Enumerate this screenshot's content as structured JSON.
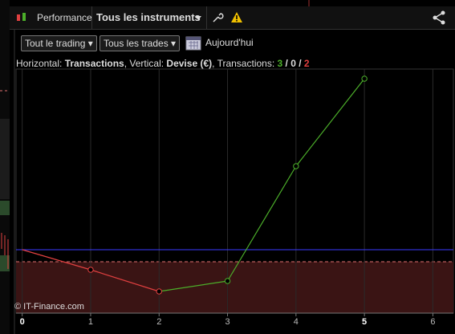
{
  "toolbar": {
    "tab": "Performance",
    "instrument": "Tous les instruments"
  },
  "filters": {
    "trading": "Tout le trading",
    "trades": "Tous les trades",
    "date": "Aujourd'hui"
  },
  "info": {
    "h_label": "Horizontal: ",
    "h_value": "Transactions",
    "v_label": ", Vertical: ",
    "v_value": "Devise (€)",
    "t_label": ", Transactions: ",
    "won": 3,
    "separator": " / ",
    "neutral": 0,
    "lost": 2
  },
  "chart_data": {
    "type": "line",
    "x": [
      0,
      1,
      2,
      3,
      4,
      5
    ],
    "values": [
      0,
      -25,
      -52,
      -39,
      104,
      213
    ],
    "xlim": [
      -0.09,
      6.3
    ],
    "ylim": [
      -79,
      225
    ],
    "xticks": [
      0,
      1,
      2,
      3,
      4,
      5,
      6
    ],
    "grid": true,
    "baseline": 0,
    "shade_below": -15,
    "up_color": "#4caf2a",
    "down_color": "#e04040",
    "baseline_color": "#3a3aff",
    "credit": "© IT-Finance.com"
  }
}
